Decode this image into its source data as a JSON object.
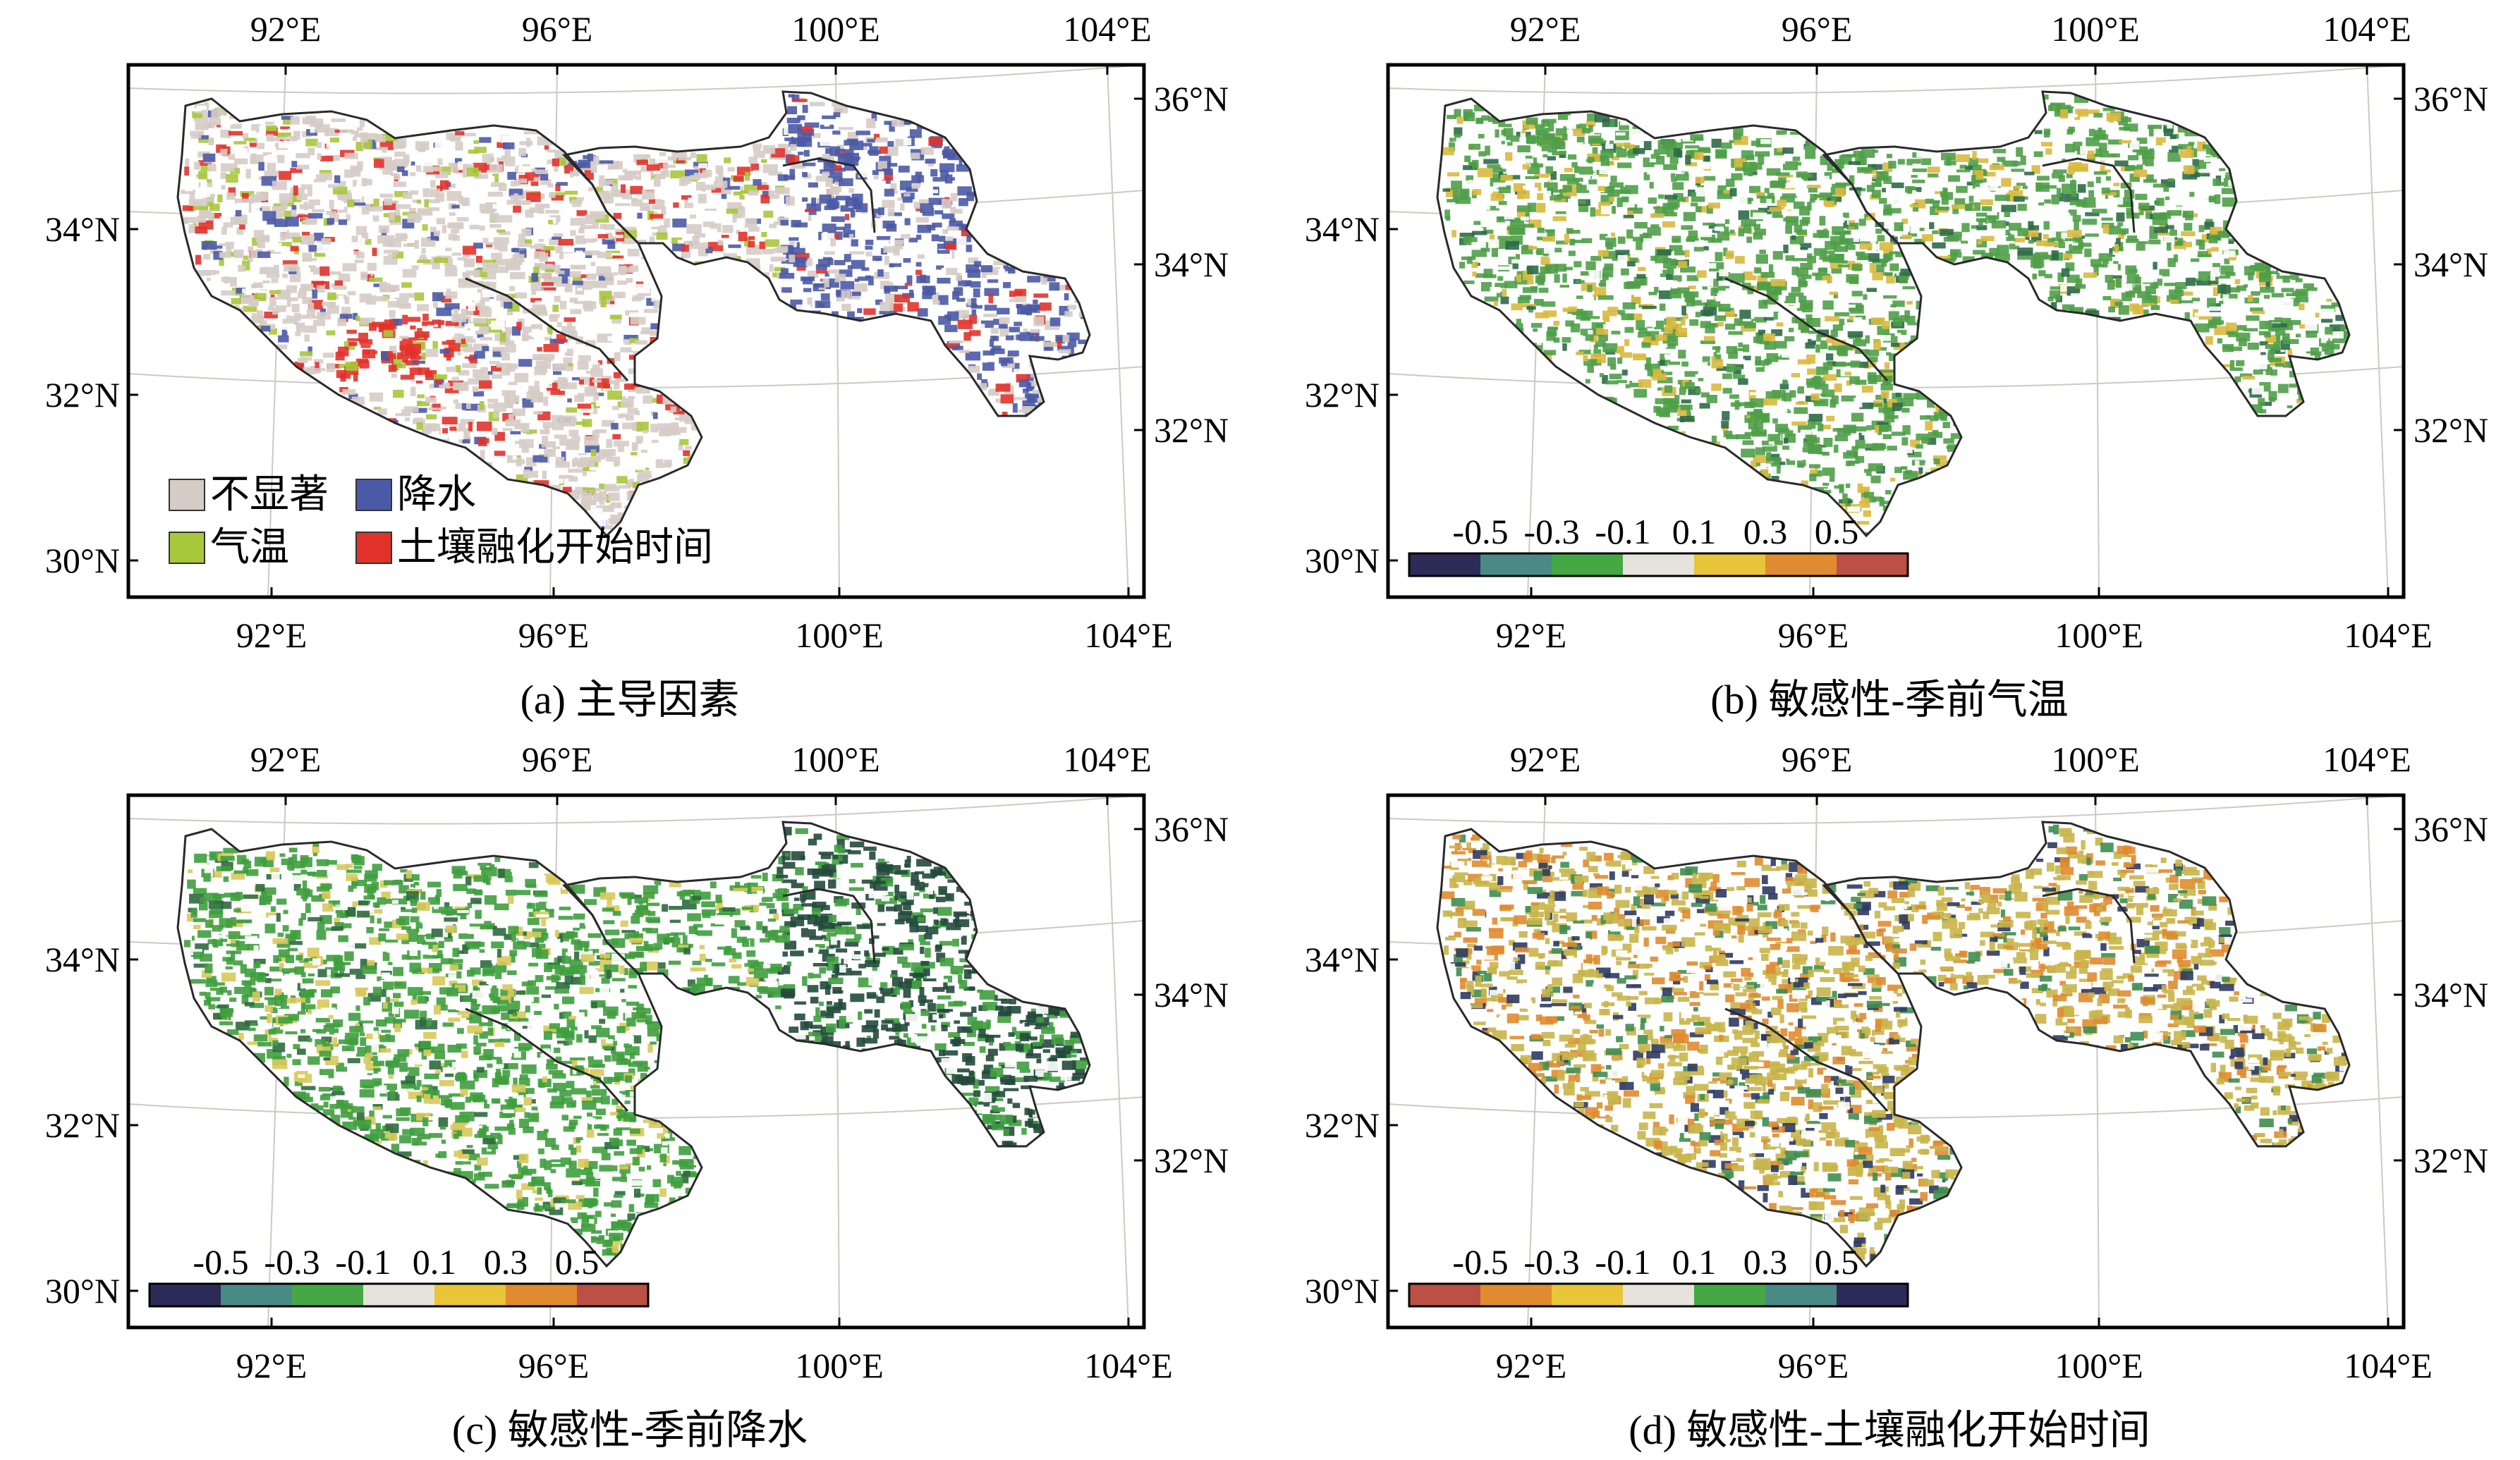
{
  "panels": [
    {
      "id": "a",
      "caption": "(a) 主导因素",
      "type": "categorical",
      "legend": [
        {
          "label": "不显著",
          "color": "#d6ccc6"
        },
        {
          "label": "降水",
          "color": "#4b5aa6"
        },
        {
          "label": "气温",
          "color": "#a7c83a"
        },
        {
          "label": "土壤融化开始时间",
          "color": "#e2322a"
        }
      ]
    },
    {
      "id": "b",
      "caption": "(b) 敏感性-季前气温",
      "type": "diverging",
      "colorbar_colors": [
        "#2d2b57",
        "#4a8a86",
        "#45a844",
        "#e6e3dc",
        "#e9c53a",
        "#e08b30",
        "#bc5044"
      ],
      "tint": {
        "base": "#4f9e48",
        "alt": "#d9b93e"
      }
    },
    {
      "id": "c",
      "caption": "(c) 敏感性-季前降水",
      "type": "diverging",
      "colorbar_colors": [
        "#2d2b57",
        "#4a8a86",
        "#45a844",
        "#e6e3dc",
        "#e9c53a",
        "#e08b30",
        "#bc5044"
      ],
      "tint": {
        "base": "#3f9e3e",
        "alt": "#234a3c"
      }
    },
    {
      "id": "d",
      "caption": "(d) 敏感性-土壤融化开始时间",
      "type": "diverging",
      "colorbar_colors": [
        "#bc5044",
        "#e08b30",
        "#e9c53a",
        "#e6e3dc",
        "#45a844",
        "#4a8a86",
        "#2d2b57"
      ],
      "tint": {
        "base": "#c9b54a",
        "alt": "#e08b30"
      }
    }
  ],
  "colorbar_labels": [
    "-0.5",
    "-0.3",
    "-0.1",
    "0.1",
    "0.3",
    "0.5"
  ],
  "lon_labels": [
    "92°E",
    "96°E",
    "100°E",
    "104°E"
  ],
  "lat_labels_left": [
    "34°N",
    "32°N",
    "30°N"
  ],
  "lat_labels_right": [
    "36°N",
    "34°N",
    "32°N"
  ]
}
